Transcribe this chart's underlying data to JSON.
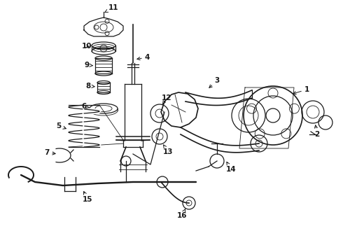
{
  "bg_color": "#ffffff",
  "line_color": "#1a1a1a",
  "label_color": "#000000",
  "fig_width": 4.9,
  "fig_height": 3.6,
  "dpi": 100,
  "lw": 0.9,
  "lw_thick": 1.4,
  "lw_thin": 0.6,
  "font_size": 7.0,
  "font_size_bold": 7.5
}
